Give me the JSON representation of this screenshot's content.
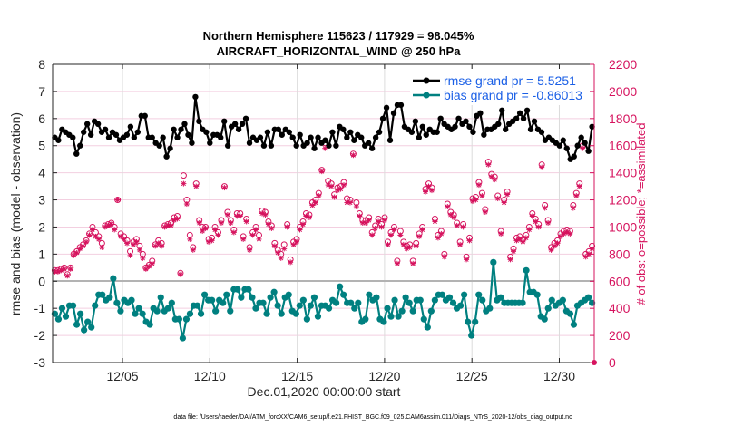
{
  "chart_data": {
    "type": "line",
    "title": "Northern Hemisphere 115623 / 117929 = 98.045%",
    "subtitle": "AIRCRAFT_HORIZONTAL_WIND @ 250 hPa",
    "xlabel": "Dec.01,2020 00:00:00 start",
    "ylabel": "rmse and bias (model - observation)",
    "y2label": "# of obs: o=possible; *=assimilated",
    "footer": "data file: /Users/raeder/DAI/ATM_forcXX/CAM6_setup/f.e21.FHIST_BGC.f09_025.CAM6assim.011/Diags_NTrS_2020-12/obs_diag_output.nc",
    "xlim_days": [
      1,
      32
    ],
    "ylim": [
      -3,
      8
    ],
    "y2lim": [
      0,
      2200
    ],
    "grid": true,
    "legend_position": "top-right",
    "x_ticks": [
      {
        "day": 5,
        "label": "12/05"
      },
      {
        "day": 10,
        "label": "12/10"
      },
      {
        "day": 15,
        "label": "12/15"
      },
      {
        "day": 20,
        "label": "12/20"
      },
      {
        "day": 25,
        "label": "12/25"
      },
      {
        "day": 30,
        "label": "12/30"
      }
    ],
    "y_ticks": [
      "-3",
      "-2",
      "-1",
      "0",
      "1",
      "2",
      "3",
      "4",
      "5",
      "6",
      "7",
      "8"
    ],
    "y2_ticks": [
      "0",
      "200",
      "400",
      "600",
      "800",
      "1000",
      "1200",
      "1400",
      "1600",
      "1800",
      "2000",
      "2200"
    ],
    "colors": {
      "rmse": "#000000",
      "bias": "#008080",
      "obs": "#d6135e",
      "zero_line": "#b3b3b3",
      "legend_text": "#1a5fe6"
    },
    "series": [
      {
        "name": "rmse grand pr = 5.5251",
        "x_start_day": 1.125,
        "x_step_day": 0.25,
        "values": [
          5.3,
          5.2,
          5.6,
          5.5,
          5.4,
          5.3,
          4.7,
          5.0,
          5.5,
          5.8,
          5.4,
          5.9,
          5.8,
          5.5,
          5.6,
          5.3,
          5.5,
          5.4,
          5.2,
          5.3,
          5.4,
          5.7,
          5.3,
          5.5,
          6.1,
          6.1,
          5.3,
          5.3,
          5.1,
          5.0,
          5.3,
          4.6,
          4.9,
          5.6,
          5.3,
          5.6,
          5.8,
          5.4,
          5.1,
          6.8,
          5.9,
          5.6,
          5.5,
          5.1,
          5.4,
          5.4,
          5.3,
          5.9,
          5.0,
          5.7,
          5.8,
          5.6,
          5.8,
          6.0,
          5.1,
          5.3,
          5.2,
          5.3,
          5.0,
          5.5,
          5.0,
          5.6,
          5.6,
          5.4,
          5.6,
          5.5,
          5.3,
          5.0,
          5.4,
          5.0,
          5.1,
          5.3,
          4.9,
          5.3,
          5.1,
          5.2,
          5.0,
          5.5,
          5.0,
          5.7,
          5.6,
          5.3,
          5.5,
          5.2,
          5.4,
          5.3,
          5.0,
          5.1,
          4.9,
          5.3,
          5.5,
          6.0,
          6.4,
          5.2,
          6.2,
          6.5,
          6.5,
          5.7,
          5.6,
          5.5,
          5.9,
          5.3,
          5.7,
          5.4,
          5.6,
          5.5,
          5.5,
          6.0,
          5.8,
          5.7,
          5.6,
          5.7,
          6.0,
          5.8,
          5.9,
          5.7,
          5.5,
          6.1,
          6.2,
          5.4,
          5.6,
          5.6,
          5.7,
          5.8,
          6.3,
          5.6,
          5.8,
          5.9,
          6.0,
          6.2,
          6.0,
          6.3,
          5.6,
          5.9,
          5.6,
          5.5,
          5.2,
          5.3,
          5.2,
          5.1,
          5.0,
          5.2,
          4.9,
          4.5,
          4.6,
          5.0,
          5.3,
          5.1,
          4.8,
          5.7
        ]
      },
      {
        "name": "bias grand pr = -0.86013",
        "x_start_day": 1.125,
        "x_step_day": 0.25,
        "values": [
          -1.2,
          -1.4,
          -1.0,
          -1.3,
          -0.9,
          -0.9,
          -1.6,
          -1.2,
          -1.8,
          -1.5,
          -1.7,
          -0.9,
          -0.5,
          -0.5,
          -0.7,
          -0.6,
          0.1,
          -0.8,
          -1.1,
          -0.7,
          -0.8,
          -0.7,
          -1.2,
          -1.0,
          -1.2,
          -1.5,
          -1.6,
          -1.0,
          -1.1,
          -0.6,
          -1.1,
          -1.0,
          -0.8,
          -1.4,
          -1.4,
          -2.1,
          -1.4,
          -1.2,
          -0.9,
          -0.9,
          -1.2,
          -0.5,
          -0.7,
          -0.7,
          -1.1,
          -0.7,
          -0.8,
          -0.5,
          -1.1,
          -0.3,
          -0.3,
          -0.6,
          -0.3,
          -0.3,
          -0.6,
          -1.0,
          -0.8,
          -0.8,
          -1.2,
          -0.6,
          -0.4,
          -0.9,
          -1.2,
          -0.6,
          -0.5,
          -1.1,
          -1.2,
          -0.9,
          -0.7,
          -1.4,
          -0.9,
          -0.6,
          -1.3,
          -0.9,
          -0.9,
          -1.0,
          -0.7,
          -0.8,
          -0.2,
          -0.5,
          -0.8,
          -0.8,
          -1.0,
          -0.8,
          -1.5,
          -1.4,
          -0.5,
          -0.7,
          -0.6,
          -1.4,
          -1.5,
          -1.0,
          -1.3,
          -0.7,
          -1.3,
          -1.1,
          -0.6,
          -0.8,
          -1.1,
          -0.7,
          -0.7,
          -1.4,
          -1.7,
          -1.1,
          -0.7,
          -0.5,
          -0.5,
          -0.7,
          -0.6,
          -0.8,
          -1.0,
          -0.9,
          -0.5,
          -1.5,
          -2.0,
          -1.5,
          -0.5,
          -0.7,
          -1.1,
          -1.0,
          0.7,
          -0.7,
          -0.6,
          -0.8,
          -0.8,
          -0.8,
          -0.8,
          -0.8,
          -0.8,
          0.4,
          -0.4,
          -0.4,
          -0.5,
          -1.3,
          -1.4,
          -1.0,
          -0.7,
          -0.9,
          -0.8,
          -0.7,
          -1.1,
          -1.2,
          -1.6,
          -0.9,
          -0.8,
          -0.7,
          -0.6,
          -0.8
        ]
      }
    ],
    "obs_possible": {
      "name": "possible (o)",
      "x_start_day": 1.125,
      "x_step_day": 0.25,
      "values": [
        680,
        680,
        690,
        700,
        650,
        700,
        800,
        820,
        850,
        870,
        900,
        950,
        1000,
        960,
        930,
        880,
        1010,
        1020,
        1030,
        1000,
        1200,
        950,
        930,
        900,
        820,
        890,
        910,
        860,
        800,
        700,
        720,
        750,
        870,
        900,
        880,
        1010,
        1020,
        1030,
        1070,
        1080,
        660,
        1380,
        1200,
        940,
        850,
        1320,
        1050,
        1000,
        1000,
        910,
        920,
        1000,
        960,
        1050,
        1300,
        1110,
        1050,
        980,
        1100,
        1100,
        930,
        1060,
        850,
        960,
        1000,
        940,
        1120,
        1110,
        1040,
        1010,
        880,
        830,
        800,
        870,
        1020,
        760,
        890,
        910,
        1000,
        1040,
        1100,
        1090,
        1180,
        1200,
        1250,
        1420,
        1620,
        1340,
        1320,
        1240,
        1290,
        1300,
        1330,
        1210,
        1200,
        1540,
        1180,
        1100,
        1050,
        1050,
        1070,
        960,
        1010,
        1060,
        1020,
        1070,
        890,
        960,
        1000,
        750,
        970,
        890,
        860,
        870,
        750,
        880,
        950,
        1000,
        1280,
        1320,
        1290,
        1060,
        940,
        970,
        800,
        1170,
        1110,
        1090,
        1030,
        890,
        1020,
        780,
        920,
        1210,
        1220,
        1330,
        1250,
        1130,
        1480,
        1390,
        1370,
        1230,
        970,
        1200,
        1260,
        780,
        840,
        920,
        930,
        910,
        940,
        1000,
        1100,
        1060,
        1020,
        1460,
        1160,
        1050,
        850,
        880,
        900,
        950,
        970,
        980,
        970,
        1160,
        1250,
        1320,
        1600,
        800,
        820,
        860
      ]
    },
    "obs_assimilated": {
      "name": "assimilated (*)",
      "x_start_day": 1.125,
      "x_step_day": 0.25,
      "values": [
        670,
        670,
        680,
        690,
        640,
        690,
        790,
        810,
        840,
        860,
        890,
        940,
        980,
        930,
        910,
        850,
        1000,
        1010,
        1020,
        980,
        1200,
        930,
        910,
        880,
        790,
        870,
        890,
        830,
        770,
        690,
        710,
        730,
        860,
        880,
        860,
        1000,
        1010,
        1010,
        1050,
        1060,
        650,
        1320,
        1170,
        910,
        830,
        1300,
        1030,
        970,
        990,
        890,
        900,
        980,
        940,
        1030,
        1290,
        1090,
        1030,
        960,
        1080,
        1080,
        910,
        1040,
        830,
        940,
        980,
        910,
        1100,
        1090,
        1020,
        990,
        860,
        810,
        770,
        840,
        1000,
        740,
        870,
        890,
        980,
        1020,
        1080,
        1070,
        1160,
        1180,
        1230,
        1410,
        1580,
        1310,
        1300,
        1220,
        1270,
        1280,
        1310,
        1180,
        1180,
        1530,
        1150,
        1080,
        1030,
        1030,
        1050,
        940,
        990,
        1040,
        1000,
        1050,
        870,
        940,
        980,
        730,
        940,
        870,
        840,
        850,
        730,
        860,
        930,
        980,
        1260,
        1300,
        1270,
        1040,
        920,
        950,
        780,
        1150,
        1090,
        1070,
        1010,
        870,
        1000,
        760,
        900,
        1190,
        1200,
        1310,
        1230,
        1110,
        1460,
        1370,
        1350,
        1210,
        950,
        1180,
        1240,
        760,
        820,
        900,
        910,
        890,
        920,
        980,
        1080,
        1040,
        1000,
        1440,
        1140,
        1030,
        830,
        860,
        880,
        930,
        950,
        960,
        950,
        1140,
        1230,
        1300,
        1580,
        780,
        800,
        840
      ]
    }
  }
}
